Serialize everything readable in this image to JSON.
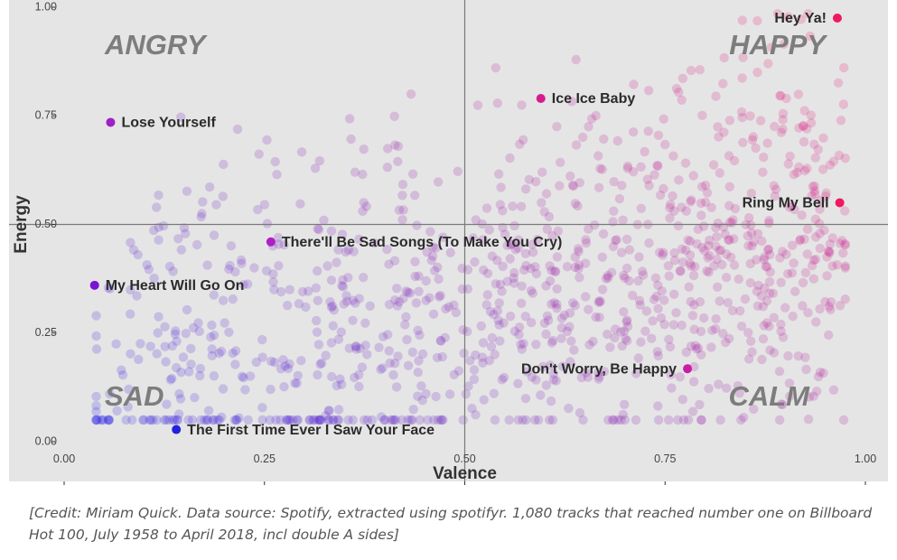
{
  "chart_data": {
    "type": "scatter",
    "xlabel": "Valence",
    "ylabel": "Energy",
    "xlim": [
      0,
      1
    ],
    "ylim": [
      0,
      1
    ],
    "x_ticks": [
      "0.00",
      "0.25",
      "0.50",
      "0.75",
      "1.00"
    ],
    "y_ticks": [
      "0.00",
      "0.25",
      "0.50",
      "0.75",
      "1.00"
    ],
    "reference_lines": {
      "x": 0.5,
      "y": 0.5
    },
    "quadrant_labels": [
      {
        "label": "ANGRY",
        "position": "top-left"
      },
      {
        "label": "HAPPY",
        "position": "top-right"
      },
      {
        "label": "SAD",
        "position": "bottom-left"
      },
      {
        "label": "CALM",
        "position": "bottom-right"
      }
    ],
    "color_low": "#2222ee",
    "color_high": "#ff1166",
    "grid": false,
    "highlighted": [
      {
        "label": "Hey Ya!",
        "x": 0.965,
        "y": 0.975,
        "color": "#f0185e"
      },
      {
        "label": "Ice Ice Baby",
        "x": 0.595,
        "y": 0.79,
        "color": "#d61b8f"
      },
      {
        "label": "Lose Yourself",
        "x": 0.058,
        "y": 0.735,
        "color": "#a020c8"
      },
      {
        "label": "Ring My Bell",
        "x": 0.968,
        "y": 0.55,
        "color": "#f0185e"
      },
      {
        "label": "There'll Be Sad Songs (To Make You Cry)",
        "x": 0.258,
        "y": 0.46,
        "color": "#b01ec8"
      },
      {
        "label": "My Heart Will Go On",
        "x": 0.038,
        "y": 0.36,
        "color": "#7a14d2"
      },
      {
        "label": "Don't Worry, Be Happy",
        "x": 0.778,
        "y": 0.168,
        "color": "#c81ea6"
      },
      {
        "label": "The First Time Ever I Saw Your Face",
        "x": 0.14,
        "y": 0.028,
        "color": "#2222dd"
      }
    ],
    "background_point_count": 1080
  },
  "credit": "[Credit: Miriam Quick. Data source: Spotify, extracted using spotifyr. 1,080 tracks that reached number one on Billboard Hot 100, July 1958 to April 2018, incl double A sides]"
}
